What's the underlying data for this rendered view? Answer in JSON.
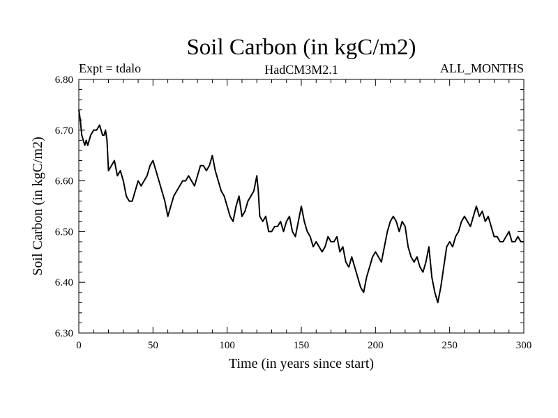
{
  "chart_data": {
    "type": "line",
    "title": "Soil Carbon (in kgC/m2)",
    "subtitle_left": "Expt = tdalo",
    "subtitle_center": "HadCM3M2.1",
    "subtitle_right": "ALL_MONTHS",
    "xlabel": "Time (in years since start)",
    "ylabel": "Soil Carbon (in kgC/m2)",
    "xlim": [
      0,
      300
    ],
    "ylim": [
      6.3,
      6.8
    ],
    "xticks": [
      "0",
      "50",
      "100",
      "150",
      "200",
      "250",
      "300"
    ],
    "yticks": [
      "6.30",
      "6.40",
      "6.50",
      "6.60",
      "6.70",
      "6.80"
    ],
    "grid": false,
    "color": "#000000",
    "series": [
      {
        "x": [
          0,
          1,
          2,
          3,
          4,
          5,
          6,
          8,
          10,
          12,
          14,
          15,
          16,
          17,
          18,
          19,
          20,
          22,
          24,
          26,
          28,
          30,
          32,
          34,
          36,
          38,
          40,
          42,
          44,
          46,
          48,
          50,
          52,
          54,
          56,
          58,
          60,
          62,
          64,
          66,
          68,
          70,
          72,
          74,
          76,
          78,
          80,
          82,
          84,
          86,
          88,
          90,
          92,
          94,
          96,
          98,
          100,
          102,
          104,
          106,
          108,
          110,
          112,
          114,
          116,
          118,
          120,
          121,
          122,
          124,
          126,
          128,
          130,
          132,
          134,
          136,
          138,
          140,
          142,
          144,
          146,
          148,
          150,
          152,
          154,
          156,
          158,
          160,
          162,
          164,
          166,
          168,
          170,
          172,
          174,
          176,
          178,
          180,
          182,
          184,
          186,
          188,
          190,
          192,
          194,
          196,
          198,
          200,
          202,
          204,
          206,
          208,
          210,
          212,
          214,
          216,
          218,
          220,
          222,
          224,
          226,
          228,
          230,
          232,
          234,
          236,
          238,
          240,
          242,
          244,
          246,
          248,
          250,
          252,
          254,
          256,
          258,
          260,
          262,
          264,
          266,
          268,
          270,
          272,
          274,
          276,
          278,
          280,
          282,
          284,
          286,
          288,
          290,
          292,
          294,
          296,
          298,
          300
        ],
        "y": [
          6.74,
          6.72,
          6.69,
          6.68,
          6.67,
          6.68,
          6.67,
          6.69,
          6.7,
          6.7,
          6.71,
          6.7,
          6.69,
          6.69,
          6.7,
          6.68,
          6.62,
          6.63,
          6.64,
          6.61,
          6.62,
          6.6,
          6.57,
          6.56,
          6.56,
          6.58,
          6.6,
          6.59,
          6.6,
          6.61,
          6.63,
          6.64,
          6.62,
          6.6,
          6.58,
          6.56,
          6.53,
          6.55,
          6.57,
          6.58,
          6.59,
          6.6,
          6.6,
          6.61,
          6.6,
          6.59,
          6.61,
          6.63,
          6.63,
          6.62,
          6.63,
          6.65,
          6.62,
          6.6,
          6.58,
          6.57,
          6.55,
          6.53,
          6.52,
          6.55,
          6.57,
          6.53,
          6.54,
          6.56,
          6.57,
          6.58,
          6.61,
          6.58,
          6.53,
          6.52,
          6.53,
          6.5,
          6.5,
          6.51,
          6.51,
          6.52,
          6.5,
          6.52,
          6.53,
          6.5,
          6.49,
          6.52,
          6.55,
          6.52,
          6.5,
          6.49,
          6.47,
          6.48,
          6.47,
          6.46,
          6.47,
          6.49,
          6.48,
          6.48,
          6.49,
          6.46,
          6.47,
          6.44,
          6.43,
          6.45,
          6.43,
          6.41,
          6.39,
          6.38,
          6.41,
          6.43,
          6.45,
          6.46,
          6.45,
          6.44,
          6.47,
          6.5,
          6.52,
          6.53,
          6.52,
          6.5,
          6.52,
          6.51,
          6.47,
          6.45,
          6.44,
          6.45,
          6.43,
          6.42,
          6.44,
          6.47,
          6.41,
          6.38,
          6.36,
          6.39,
          6.43,
          6.47,
          6.48,
          6.47,
          6.49,
          6.5,
          6.52,
          6.53,
          6.52,
          6.51,
          6.53,
          6.55,
          6.53,
          6.54,
          6.52,
          6.53,
          6.51,
          6.49,
          6.49,
          6.48,
          6.48,
          6.49,
          6.5,
          6.48,
          6.48,
          6.49,
          6.48,
          6.48
        ]
      }
    ]
  }
}
